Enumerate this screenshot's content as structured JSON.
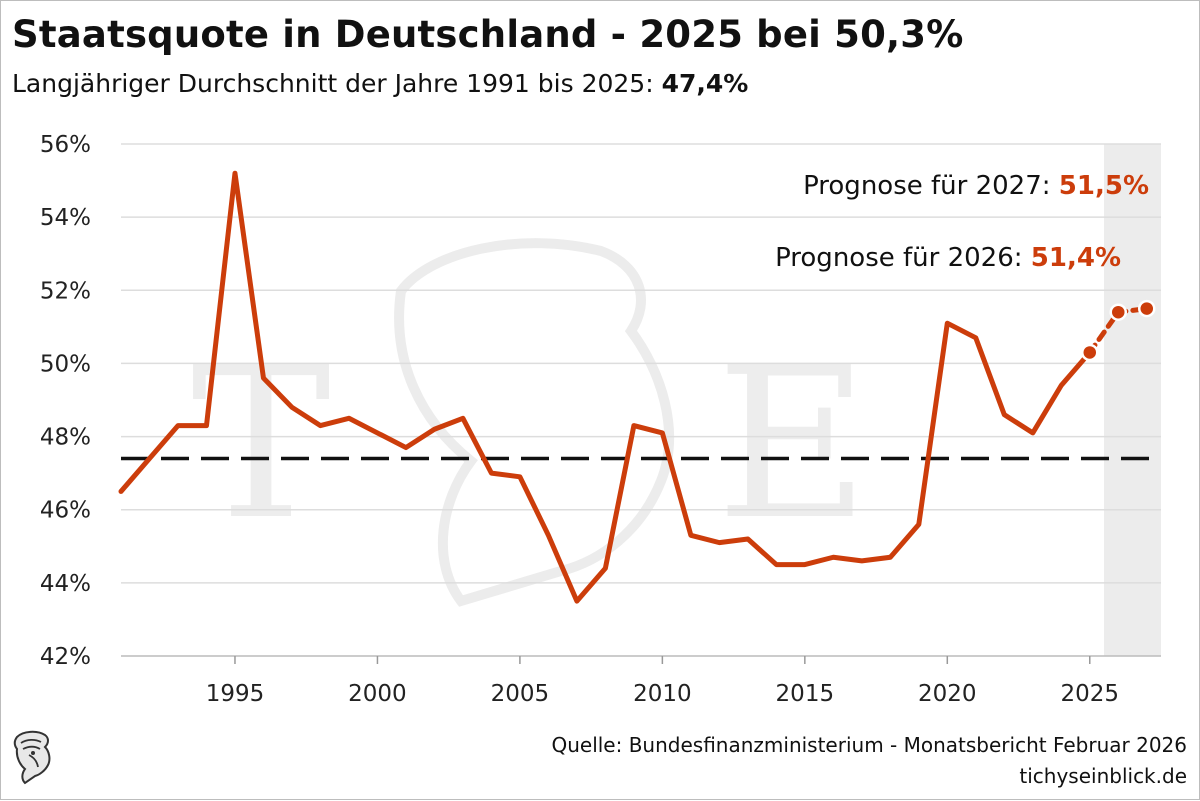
{
  "header": {
    "title": "Staatsquote in Deutschland - 2025 bei 50,3%",
    "subtitle_prefix": "Langjähriger Durchschnitt der Jahre 1991 bis 2025: ",
    "subtitle_value": "47,4%"
  },
  "footer": {
    "source": "Quelle: Bundesfinanzministerium - Monatsbericht Februar 2026",
    "site": "tichyseinblick.de"
  },
  "colors": {
    "line": "#cc3d0b",
    "average": "#111111",
    "grid": "#dddddd",
    "forecast_band": "#ececec"
  },
  "chart_data": {
    "type": "line",
    "title": "Staatsquote in Deutschland - 2025 bei 50,3%",
    "xlabel": "",
    "ylabel": "",
    "ylim": [
      42,
      56
    ],
    "xlim": [
      1991,
      2027.5
    ],
    "yticks": [
      42,
      44,
      46,
      48,
      50,
      52,
      54,
      56
    ],
    "ytick_labels": [
      "42%",
      "44%",
      "46%",
      "48%",
      "50%",
      "52%",
      "54%",
      "56%"
    ],
    "xticks": [
      1995,
      2000,
      2005,
      2010,
      2015,
      2020,
      2025
    ],
    "xtick_labels": [
      "1995",
      "2000",
      "2005",
      "2010",
      "2015",
      "2020",
      "2025"
    ],
    "grid": true,
    "series": [
      {
        "name": "Staatsquote",
        "x": [
          1991,
          1992,
          1993,
          1994,
          1995,
          1996,
          1997,
          1998,
          1999,
          2000,
          2001,
          2002,
          2003,
          2004,
          2005,
          2006,
          2007,
          2008,
          2009,
          2010,
          2011,
          2012,
          2013,
          2014,
          2015,
          2016,
          2017,
          2018,
          2019,
          2020,
          2021,
          2022,
          2023,
          2024,
          2025
        ],
        "values": [
          46.5,
          47.4,
          48.3,
          48.3,
          55.2,
          49.6,
          48.8,
          48.3,
          48.5,
          48.1,
          47.7,
          48.2,
          48.5,
          47.0,
          46.9,
          45.3,
          43.5,
          44.4,
          48.3,
          48.1,
          45.3,
          45.1,
          45.2,
          44.5,
          44.5,
          44.7,
          44.6,
          44.7,
          45.6,
          51.1,
          50.7,
          48.6,
          48.1,
          49.4,
          50.3
        ]
      },
      {
        "name": "Prognose",
        "x": [
          2025,
          2026,
          2027
        ],
        "values": [
          50.3,
          51.4,
          51.5
        ]
      }
    ],
    "average": {
      "label": "Langjähriger Durchschnitt 1991-2025",
      "value": 47.4
    },
    "forecast_region": [
      2025.5,
      2027.5
    ],
    "annotations": [
      {
        "label": "Prognose für 2027: ",
        "value": "51,5%"
      },
      {
        "label": "Prognose für 2026: ",
        "value": "51,4%"
      }
    ]
  }
}
